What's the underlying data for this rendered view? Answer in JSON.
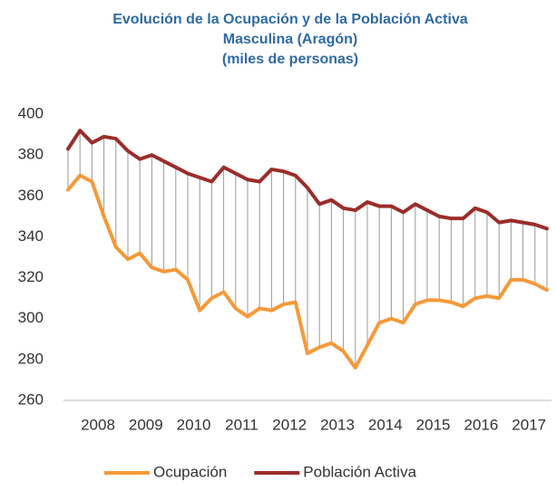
{
  "chart_data": {
    "type": "line",
    "title": [
      "Evolución de la Ocupación y de la Población Activa",
      "Masculina (Aragón)",
      "(miles de personas)"
    ],
    "categories": [
      null,
      null,
      "2008",
      null,
      null,
      null,
      "2009",
      null,
      null,
      null,
      "2010",
      null,
      null,
      null,
      "2011",
      null,
      null,
      null,
      "2012",
      null,
      null,
      null,
      "2013",
      null,
      null,
      null,
      "2014",
      null,
      null,
      null,
      "2015",
      null,
      null,
      null,
      "2016",
      null,
      null,
      null,
      "2017",
      null,
      null
    ],
    "series": [
      {
        "name": "Ocupación",
        "color": "#f5993a",
        "values": [
          363,
          370,
          367,
          350,
          335,
          329,
          332,
          325,
          323,
          324,
          319,
          304,
          310,
          313,
          305,
          301,
          305,
          304,
          307,
          308,
          283,
          286,
          288,
          284,
          276,
          287,
          298,
          300,
          298,
          307,
          309,
          309,
          308,
          306,
          310,
          311,
          310,
          319,
          319,
          317,
          314
        ]
      },
      {
        "name": "Población Activa",
        "color": "#9a2d2a",
        "values": [
          383,
          392,
          386,
          389,
          388,
          382,
          378,
          380,
          377,
          374,
          371,
          369,
          367,
          374,
          371,
          368,
          367,
          373,
          372,
          370,
          364,
          356,
          358,
          354,
          353,
          357,
          355,
          355,
          352,
          356,
          353,
          350,
          349,
          349,
          354,
          352,
          347,
          348,
          347,
          346,
          344
        ]
      }
    ],
    "ylim": [
      260,
      400
    ],
    "yticks": [
      260,
      280,
      300,
      320,
      340,
      360,
      380,
      400
    ],
    "legend": "bottom"
  }
}
